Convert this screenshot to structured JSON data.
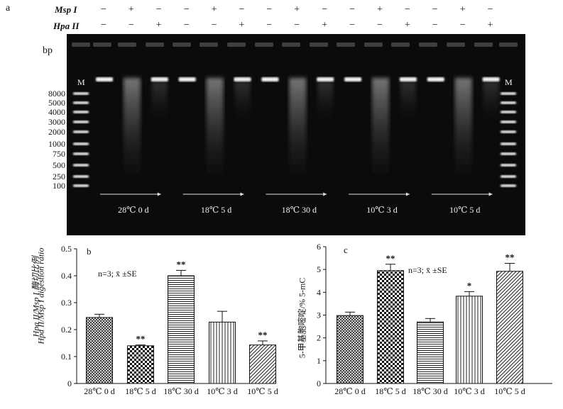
{
  "panel_a": {
    "label": "a",
    "rows": [
      {
        "name": "Msp I",
        "signs": [
          "−",
          "+",
          "−",
          "−",
          "+",
          "−",
          "−",
          "+",
          "−",
          "−",
          "+",
          "−",
          "−",
          "+",
          "−"
        ]
      },
      {
        "name": "Hpa II",
        "signs": [
          "−",
          "−",
          "+",
          "−",
          "−",
          "+",
          "−",
          "−",
          "+",
          "−",
          "−",
          "+",
          "−",
          "−",
          "+"
        ]
      }
    ],
    "marker": "M",
    "bp_label": "bp",
    "ladder": [
      "8000",
      "5000",
      "4000",
      "3000",
      "2000",
      "1000",
      "750",
      "500",
      "250",
      "100"
    ],
    "groups": [
      "28℃ 0 d",
      "18℃ 5 d",
      "18℃ 30 d",
      "10℃ 3 d",
      "10℃ 5 d"
    ]
  },
  "chart_data": [
    {
      "type": "bar",
      "panel": "b",
      "categories": [
        "28℃ 0 d",
        "18℃ 5 d",
        "18℃ 30 d",
        "10℃ 3 d",
        "10℃ 5 d"
      ],
      "values": [
        0.245,
        0.14,
        0.4,
        0.228,
        0.143
      ],
      "errors": [
        0.012,
        0.003,
        0.02,
        0.04,
        0.015
      ],
      "significance": [
        "",
        "**",
        "**",
        "",
        "**"
      ],
      "ylabel_cn": "Hpa II/Msp I 酶切比例",
      "ylabel_en": "Hpa II/Msp I digestion ratio",
      "annotation": "n=3; x̄ ±SE",
      "ylim": [
        0,
        0.5
      ],
      "yticks": [
        "0",
        "0.1",
        "0.2",
        "0.3",
        "0.4",
        "0.5"
      ],
      "patterns": [
        "crosshatch",
        "checker",
        "horizontal",
        "vertical",
        "diagonal"
      ]
    },
    {
      "type": "bar",
      "panel": "c",
      "categories": [
        "28℃ 0 d",
        "18℃ 5 d",
        "18℃ 30 d",
        "10℃ 3 d",
        "10℃ 5 d"
      ],
      "values": [
        2.98,
        4.95,
        2.7,
        3.83,
        4.92
      ],
      "errors": [
        0.15,
        0.28,
        0.15,
        0.2,
        0.35
      ],
      "significance": [
        "",
        "**",
        "",
        "*",
        "**"
      ],
      "ylabel": "5-甲基胞嘧啶/% 5-mC",
      "annotation": "n=3; x̄ ±SE",
      "ylim": [
        0,
        6
      ],
      "yticks": [
        "0",
        "1",
        "2",
        "3",
        "4",
        "5",
        "6"
      ],
      "patterns": [
        "crosshatch",
        "checker",
        "horizontal",
        "vertical",
        "diagonal"
      ]
    }
  ]
}
